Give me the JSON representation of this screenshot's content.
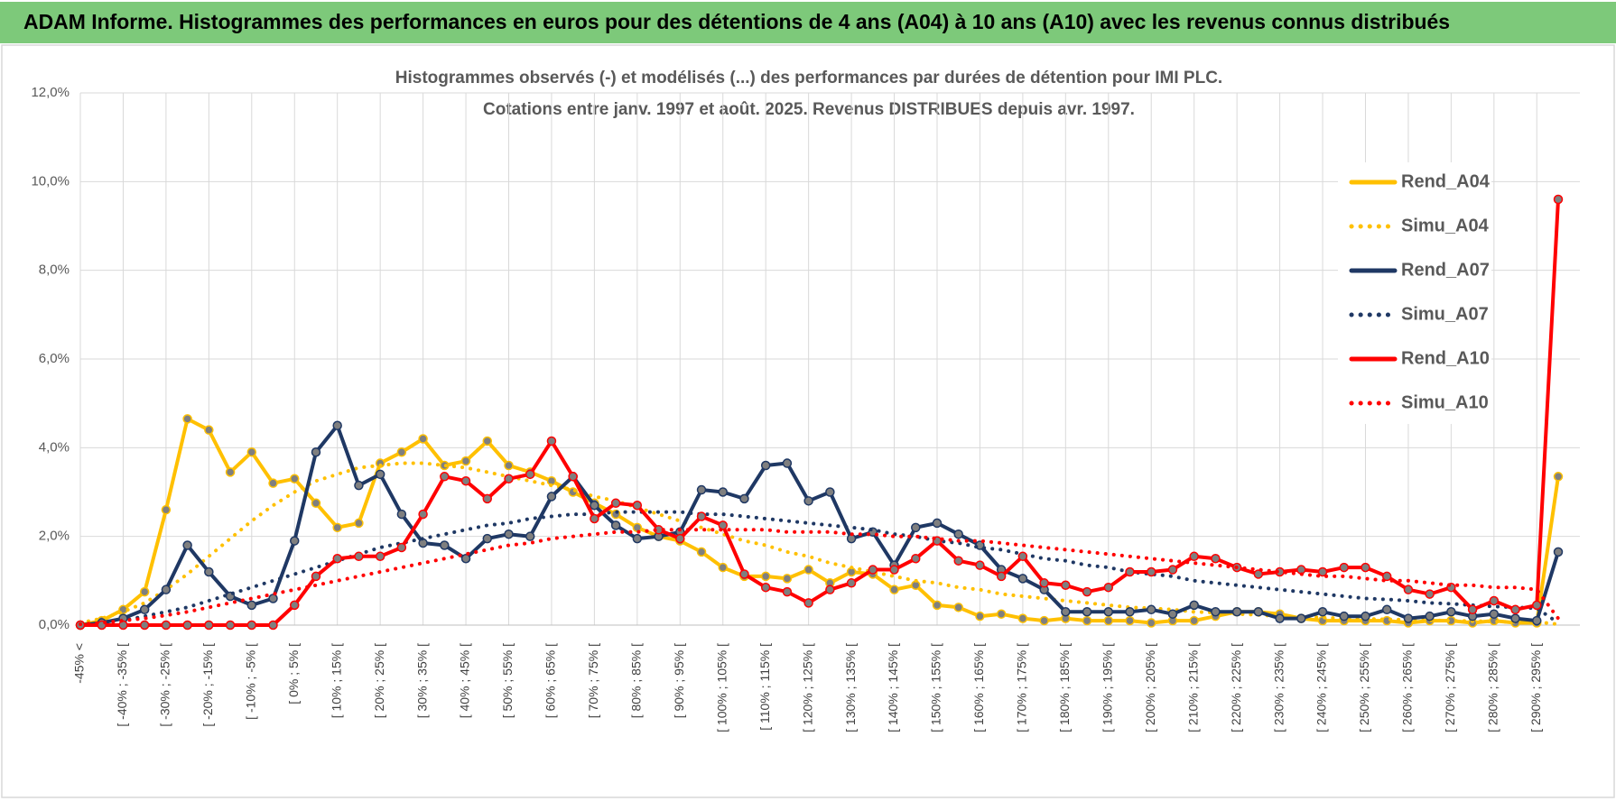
{
  "banner": "ADAM Informe. Histogrammes des performances en euros pour des détentions de 4 ans (A04) à 10 ans (A10) avec les revenus connus distribués",
  "chart_data": {
    "type": "line",
    "title": [
      "Histogrammes observés (-) et modélisés (...) des performances par durées de détention pour IMI PLC.",
      "Cotations entre janv. 1997 et août. 2025. Revenus DISTRIBUES depuis avr. 1997."
    ],
    "categories": [
      "-45% <",
      null,
      "[ -40% ; -35% [",
      null,
      "[ -30% ; -25% [",
      null,
      "[ -20% ; -15% [",
      null,
      "[ -10% ; -5% [",
      null,
      "[ 0% ; 5% [",
      null,
      "[ 10% ; 15% [",
      null,
      "[ 20% ; 25% [",
      null,
      "[ 30% ; 35% [",
      null,
      "[ 40% ; 45% [",
      null,
      "[ 50% ; 55% [",
      null,
      "[ 60% ; 65% [",
      null,
      "[ 70% ; 75% [",
      null,
      "[ 80% ; 85% [",
      null,
      "[ 90% ; 95% [",
      null,
      "[ 100% ; 105% [",
      null,
      "[ 110% ; 115% [",
      null,
      "[ 120% ; 125% [",
      null,
      "[ 130% ; 135% [",
      null,
      "[ 140% ; 145% [",
      null,
      "[ 150% ; 155% [",
      null,
      "[ 160% ; 165% [",
      null,
      "[ 170% ; 175% [",
      null,
      "[ 180% ; 185% [",
      null,
      "[ 190% ; 195% [",
      null,
      "[ 200% ; 205% [",
      null,
      "[ 210% ; 215% [",
      null,
      "[ 220% ; 225% [",
      null,
      "[ 230% ; 235% [",
      null,
      "[ 240% ; 245% [",
      null,
      "[ 250% ; 255% [",
      null,
      "[ 260% ; 265% [",
      null,
      "[ 270% ; 275% [",
      null,
      "[ 280% ; 285% [",
      null,
      "[ 290% ; 295% [",
      null
    ],
    "ylim": [
      0,
      12
    ],
    "yticks": [
      {
        "value": 0,
        "label": "0,0%"
      },
      {
        "value": 2,
        "label": "2,0%"
      },
      {
        "value": 4,
        "label": "4,0%"
      },
      {
        "value": 6,
        "label": "6,0%"
      },
      {
        "value": 8,
        "label": "8,0%"
      },
      {
        "value": 10,
        "label": "10,0%"
      },
      {
        "value": 12,
        "label": "12,0%"
      }
    ],
    "grid": true,
    "legend": "right",
    "series": [
      {
        "name": "Rend_A04",
        "color": "#ffc000",
        "line_style": "solid",
        "marker": true,
        "values": [
          0,
          0.1,
          0.35,
          0.75,
          2.6,
          4.65,
          4.4,
          3.45,
          3.9,
          3.2,
          3.3,
          2.75,
          2.2,
          2.3,
          3.65,
          3.9,
          4.2,
          3.6,
          3.7,
          4.15,
          3.6,
          3.45,
          3.25,
          3.0,
          2.75,
          2.5,
          2.2,
          2.0,
          1.9,
          1.65,
          1.3,
          1.1,
          1.1,
          1.05,
          1.25,
          0.95,
          1.2,
          1.15,
          0.8,
          0.9,
          0.45,
          0.4,
          0.2,
          0.25,
          0.15,
          0.1,
          0.15,
          0.1,
          0.1,
          0.1,
          0.05,
          0.1,
          0.1,
          0.2,
          0.3,
          0.3,
          0.25,
          0.15,
          0.1,
          0.1,
          0.1,
          0.1,
          0.05,
          0.1,
          0.1,
          0.05,
          0.1,
          0.05,
          0.05,
          3.35
        ]
      },
      {
        "name": "Simu_A04",
        "color": "#ffc000",
        "line_style": "dotted",
        "marker": false,
        "values": [
          0.05,
          0.15,
          0.3,
          0.5,
          0.8,
          1.15,
          1.55,
          1.95,
          2.35,
          2.7,
          3.0,
          3.25,
          3.4,
          3.55,
          3.6,
          3.65,
          3.65,
          3.6,
          3.55,
          3.45,
          3.35,
          3.25,
          3.15,
          3.05,
          2.9,
          2.8,
          2.65,
          2.5,
          2.35,
          2.2,
          2.05,
          1.9,
          1.8,
          1.65,
          1.55,
          1.4,
          1.3,
          1.2,
          1.1,
          1.0,
          0.95,
          0.85,
          0.8,
          0.7,
          0.65,
          0.6,
          0.55,
          0.5,
          0.45,
          0.4,
          0.38,
          0.35,
          0.3,
          0.28,
          0.25,
          0.23,
          0.2,
          0.19,
          0.17,
          0.15,
          0.14,
          0.13,
          0.12,
          0.11,
          0.1,
          0.09,
          0.08,
          0.07,
          0.07,
          0.02
        ]
      },
      {
        "name": "Rend_A07",
        "color": "#1f3864",
        "line_style": "solid",
        "marker": true,
        "values": [
          0,
          0.05,
          0.15,
          0.35,
          0.8,
          1.8,
          1.2,
          0.65,
          0.45,
          0.6,
          1.9,
          3.9,
          4.5,
          3.15,
          3.4,
          2.5,
          1.85,
          1.8,
          1.5,
          1.95,
          2.05,
          2.0,
          2.9,
          3.35,
          2.7,
          2.25,
          1.95,
          2.0,
          2.1,
          3.05,
          3.0,
          2.85,
          3.6,
          3.65,
          2.8,
          3.0,
          1.95,
          2.1,
          1.35,
          2.2,
          2.3,
          2.05,
          1.8,
          1.25,
          1.05,
          0.8,
          0.3,
          0.3,
          0.3,
          0.3,
          0.35,
          0.25,
          0.45,
          0.3,
          0.3,
          0.3,
          0.15,
          0.15,
          0.3,
          0.2,
          0.2,
          0.35,
          0.15,
          0.2,
          0.3,
          0.2,
          0.25,
          0.15,
          0.1,
          1.65
        ]
      },
      {
        "name": "Simu_A07",
        "color": "#1f3864",
        "line_style": "dotted",
        "marker": false,
        "values": [
          0.02,
          0.05,
          0.1,
          0.2,
          0.3,
          0.4,
          0.55,
          0.7,
          0.85,
          1.0,
          1.15,
          1.3,
          1.45,
          1.6,
          1.75,
          1.85,
          1.95,
          2.05,
          2.15,
          2.25,
          2.3,
          2.4,
          2.45,
          2.5,
          2.5,
          2.55,
          2.55,
          2.55,
          2.55,
          2.5,
          2.5,
          2.45,
          2.4,
          2.35,
          2.3,
          2.25,
          2.2,
          2.15,
          2.05,
          2.0,
          1.9,
          1.85,
          1.75,
          1.7,
          1.6,
          1.5,
          1.45,
          1.35,
          1.3,
          1.2,
          1.15,
          1.1,
          1.0,
          0.95,
          0.9,
          0.85,
          0.8,
          0.75,
          0.7,
          0.65,
          0.6,
          0.58,
          0.55,
          0.5,
          0.48,
          0.45,
          0.42,
          0.4,
          0.38,
          0.05
        ]
      },
      {
        "name": "Rend_A10",
        "color": "#ff0000",
        "line_style": "solid",
        "marker": true,
        "values": [
          0,
          0,
          0,
          0,
          0,
          0,
          0,
          0,
          0,
          0,
          0.45,
          1.1,
          1.5,
          1.55,
          1.55,
          1.75,
          2.5,
          3.35,
          3.25,
          2.85,
          3.3,
          3.4,
          4.15,
          3.35,
          2.4,
          2.75,
          2.7,
          2.15,
          1.95,
          2.45,
          2.25,
          1.15,
          0.85,
          0.75,
          0.5,
          0.8,
          0.95,
          1.25,
          1.25,
          1.5,
          1.9,
          1.45,
          1.35,
          1.1,
          1.55,
          0.95,
          0.9,
          0.75,
          0.85,
          1.2,
          1.2,
          1.25,
          1.55,
          1.5,
          1.3,
          1.15,
          1.2,
          1.25,
          1.2,
          1.3,
          1.3,
          1.1,
          0.8,
          0.7,
          0.85,
          0.35,
          0.55,
          0.35,
          0.45,
          9.6
        ]
      },
      {
        "name": "Simu_A10",
        "color": "#ff0000",
        "line_style": "dotted",
        "marker": false,
        "values": [
          0.02,
          0.05,
          0.1,
          0.15,
          0.22,
          0.3,
          0.4,
          0.5,
          0.6,
          0.7,
          0.8,
          0.9,
          1.0,
          1.1,
          1.2,
          1.3,
          1.4,
          1.5,
          1.6,
          1.7,
          1.8,
          1.85,
          1.95,
          2.0,
          2.05,
          2.1,
          2.1,
          2.15,
          2.15,
          2.15,
          2.15,
          2.15,
          2.15,
          2.1,
          2.1,
          2.1,
          2.05,
          2.05,
          2.0,
          2.0,
          1.95,
          1.9,
          1.9,
          1.85,
          1.8,
          1.75,
          1.7,
          1.65,
          1.6,
          1.55,
          1.5,
          1.45,
          1.4,
          1.35,
          1.3,
          1.25,
          1.2,
          1.15,
          1.1,
          1.1,
          1.05,
          1.0,
          1.0,
          0.95,
          0.9,
          0.9,
          0.85,
          0.85,
          0.8,
          0.15
        ]
      }
    ]
  }
}
